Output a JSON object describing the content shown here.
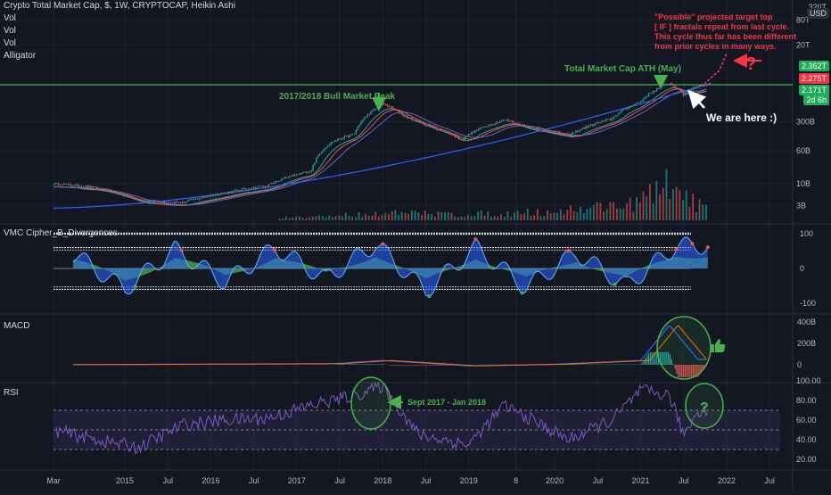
{
  "header": {
    "title": "Crypto Total Market Cap, $, 1W, CRYPTOCAP, Heikin Ashi",
    "indicators": [
      "Vol",
      "Vol",
      "Vol",
      "Alligator"
    ]
  },
  "price_axis": {
    "currency_top": "USD",
    "top_label": "320T",
    "ticks": [
      "80T",
      "20T",
      "300B",
      "60B",
      "10B",
      "3B"
    ],
    "badges": [
      {
        "text": "2.362T",
        "color": "#22ab5a"
      },
      {
        "text": "2.275T",
        "color": "#f23645"
      },
      {
        "text": "2.171T",
        "color": "#22ab5a"
      },
      {
        "text": "2d 6h",
        "color": "#22ab5a"
      }
    ]
  },
  "time_axis": {
    "ticks": [
      "Mar",
      "2015",
      "Jul",
      "2016",
      "Jul",
      "2017",
      "Jul",
      "2018",
      "Jul",
      "2019",
      "8",
      "2020",
      "Jul",
      "2021",
      "Jul",
      "2022",
      "Jul"
    ]
  },
  "panes": {
    "vmc": {
      "label": "VMC Cipher_B_Divergences",
      "ticks": [
        "100",
        "0",
        "-100"
      ]
    },
    "macd": {
      "label": "MACD",
      "ticks": [
        "400B",
        "200B",
        "0"
      ]
    },
    "rsi": {
      "label": "RSI",
      "ticks": [
        "100.00",
        "80.00",
        "60.00",
        "40.00",
        "20.00"
      ]
    }
  },
  "annotations": {
    "target_note": [
      "\"Possible\" projected target top",
      "[ IF ] fractals repeat from last cycle.",
      "This cycle thus far has been different",
      "from prior cycles in many ways."
    ],
    "ath_label": "Total Market Cap ATH (May)",
    "bull_peak_label": "2017/2018 Bull Market Peak",
    "we_are_here": "We are here :)",
    "sept_label": "Sept 2017 - Jan 2018",
    "question_red": "?",
    "question_green": "?"
  },
  "colors": {
    "background": "#131722",
    "up": "#26a69a",
    "down": "#ef5350",
    "ath_line": "#4caf50",
    "trend_line": "#2962ff",
    "annotation_green": "#4caf50",
    "annotation_red": "#f23645",
    "rsi_line": "#7e57c2"
  },
  "chart_data": [
    {
      "type": "line",
      "pane": "price",
      "title": "Crypto Total Market Cap, $, 1W, CRYPTOCAP, Heikin Ashi",
      "y_scale": "log",
      "x": [
        "2014-03",
        "2014-09",
        "2015-03",
        "2015-09",
        "2016-03",
        "2016-09",
        "2017-03",
        "2017-06",
        "2017-09",
        "2017-12",
        "2018-01",
        "2018-04",
        "2018-07",
        "2018-12",
        "2019-06",
        "2019-09",
        "2020-03",
        "2020-09",
        "2021-01",
        "2021-05",
        "2021-07",
        "2021-09"
      ],
      "series": [
        {
          "values": [
            10,
            8,
            4,
            3.5,
            6,
            9,
            20,
            100,
            150,
            600,
            800,
            400,
            250,
            110,
            330,
            230,
            140,
            350,
            900,
            2500,
            1300,
            2200
          ]
        }
      ],
      "projection": {
        "x": [
          "2021-10",
          "2021-12",
          "2022-01"
        ],
        "values": [
          2500,
          5000,
          13000
        ]
      }
    },
    {
      "type": "bar",
      "pane": "price",
      "title": "Vol",
      "x": [
        "2017",
        "2018",
        "2019",
        "2020",
        "2021-01",
        "2021-05",
        "2021-09"
      ],
      "values": [
        2,
        6,
        5,
        7,
        15,
        30,
        12
      ]
    },
    {
      "type": "area",
      "pane": "vmc",
      "title": "VMC Cipher_B_Divergences",
      "ylim": [
        -100,
        100
      ],
      "x": [
        "2014-06",
        "2015-01",
        "2015-08",
        "2016-03",
        "2016-10",
        "2017-05",
        "2017-12",
        "2018-07",
        "2019-02",
        "2019-09",
        "2020-04",
        "2020-11",
        "2021-06"
      ],
      "values": [
        40,
        -60,
        55,
        -40,
        60,
        -30,
        70,
        -65,
        60,
        -55,
        45,
        -50,
        65
      ]
    },
    {
      "type": "line",
      "pane": "macd",
      "title": "MACD",
      "ylim": [
        -100,
        400
      ],
      "x": [
        "2014",
        "2017-06",
        "2018-01",
        "2019",
        "2020",
        "2021-01",
        "2021-05",
        "2021-09"
      ],
      "series": [
        {
          "values": [
            0,
            10,
            40,
            -10,
            5,
            40,
            370,
            50
          ]
        }
      ]
    },
    {
      "type": "line",
      "pane": "rsi",
      "title": "RSI",
      "ylim": [
        20,
        100
      ],
      "x": [
        "2014-03",
        "2014-09",
        "2015-03",
        "2015-09",
        "2016-03",
        "2016-09",
        "2017-03",
        "2017-09",
        "2018-01",
        "2018-06",
        "2019-01",
        "2019-06",
        "2020-03",
        "2020-09",
        "2021-01",
        "2021-05",
        "2021-07",
        "2021-09"
      ],
      "series": [
        {
          "values": [
            50,
            40,
            32,
            55,
            60,
            62,
            75,
            85,
            95,
            45,
            35,
            75,
            40,
            60,
            90,
            85,
            45,
            70
          ]
        }
      ],
      "levels": [
        70,
        50,
        30
      ]
    }
  ]
}
